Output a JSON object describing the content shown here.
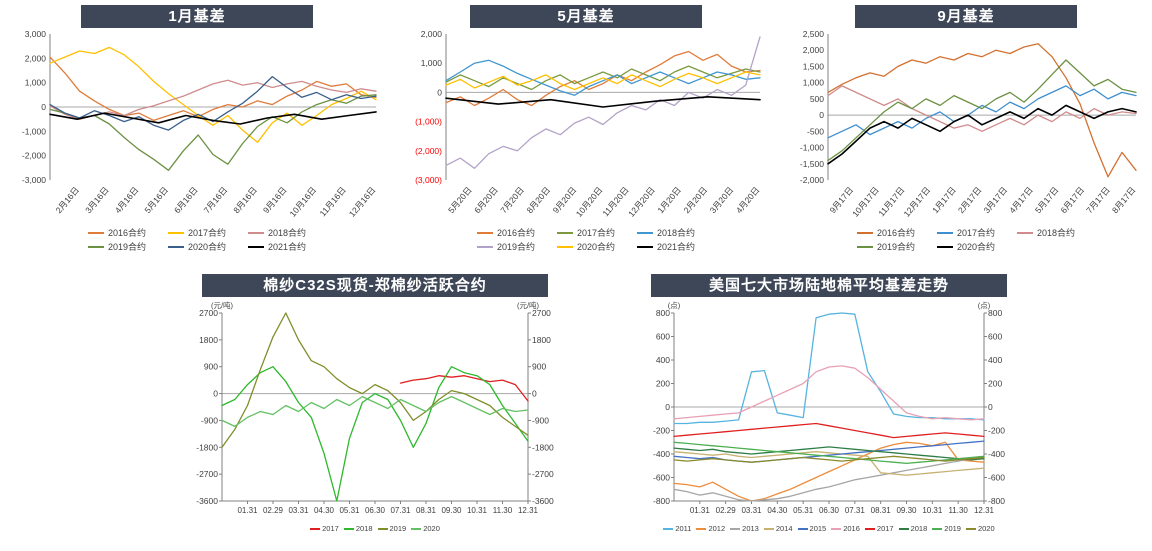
{
  "page": {
    "background": "#ffffff",
    "title_bar_color": "#3E4757"
  },
  "chart_data": [
    {
      "name": "jan-basis",
      "type": "line",
      "title": "1月基差",
      "ylim": [
        -3000,
        3000
      ],
      "ytick_step": 1000,
      "ytick_format": "comma",
      "negative_style": "minus",
      "grid": "zero-line-only",
      "legend_position": "bottom",
      "x_labels": [
        "2月16日",
        "3月16日",
        "4月16日",
        "5月16日",
        "6月16日",
        "7月16日",
        "8月16日",
        "9月16日",
        "10月16日",
        "11月16日",
        "12月16日"
      ],
      "series": [
        {
          "name": "2016合约",
          "color": "#E07B39",
          "values": [
            2050,
            1400,
            650,
            250,
            -100,
            -350,
            -250,
            -550,
            -350,
            -150,
            -400,
            -100,
            100,
            0,
            250,
            100,
            450,
            700,
            1050,
            850,
            950,
            500,
            400
          ]
        },
        {
          "name": "2017合约",
          "color": "#FFC000",
          "values": [
            1800,
            2050,
            2300,
            2200,
            2450,
            2150,
            1650,
            1050,
            550,
            100,
            -350,
            -750,
            -350,
            -950,
            -1450,
            -650,
            -250,
            -750,
            -350,
            100,
            350,
            650,
            300
          ]
        },
        {
          "name": "2018合约",
          "color": "#D08C8C",
          "values": [
            50,
            -300,
            -500,
            -350,
            -200,
            -350,
            -100,
            50,
            250,
            450,
            700,
            950,
            1100,
            900,
            1000,
            800,
            950,
            1050,
            850,
            700,
            600,
            750,
            650
          ]
        },
        {
          "name": "2019合约",
          "color": "#6C9143",
          "values": [
            -100,
            -250,
            -450,
            -350,
            -700,
            -1250,
            -1750,
            -2150,
            -2600,
            -1800,
            -1150,
            -1950,
            -2350,
            -1500,
            -800,
            -400,
            -650,
            -200,
            100,
            300,
            150,
            450,
            500
          ]
        },
        {
          "name": "2020合约",
          "color": "#3A5F8A",
          "values": [
            100,
            -250,
            -450,
            -150,
            -350,
            -600,
            -400,
            -750,
            -950,
            -550,
            -300,
            -600,
            -200,
            150,
            650,
            1250,
            800,
            400,
            600,
            300,
            500,
            350,
            450
          ]
        },
        {
          "name": "2021合约",
          "color": "#000000",
          "width": 1.6,
          "values": [
            -300,
            -500,
            -250,
            -450,
            -650,
            -350,
            -550,
            -700,
            -450,
            -300,
            -500,
            -350,
            -200
          ]
        }
      ]
    },
    {
      "name": "may-basis",
      "type": "line",
      "title": "5月基差",
      "ylim": [
        -3000,
        2000
      ],
      "ytick_step": 1000,
      "ytick_format": "comma",
      "negative_style": "paren_red",
      "grid": "zero-line-only",
      "legend_position": "bottom",
      "x_labels": [
        "5月20日",
        "6月20日",
        "7月20日",
        "8月20日",
        "9月20日",
        "10月20日",
        "11月20日",
        "12月20日",
        "1月20日",
        "2月20日",
        "3月20日",
        "4月20日"
      ],
      "series": [
        {
          "name": "2016合约",
          "color": "#E07B39",
          "values": [
            -350,
            -150,
            -450,
            -200,
            100,
            -250,
            -450,
            -100,
            200,
            400,
            100,
            300,
            600,
            400,
            700,
            950,
            1250,
            1400,
            1100,
            1300,
            900,
            700,
            750
          ]
        },
        {
          "name": "2017合约",
          "color": "#7A9A3D",
          "values": [
            350,
            600,
            400,
            200,
            500,
            300,
            100,
            400,
            600,
            300,
            500,
            700,
            500,
            800,
            600,
            400,
            700,
            900,
            700,
            500,
            650,
            800,
            700
          ]
        },
        {
          "name": "2018合约",
          "color": "#3F97D0",
          "values": [
            400,
            700,
            1000,
            1100,
            900,
            650,
            450,
            250,
            50,
            -100,
            200,
            400,
            600,
            300,
            500,
            700,
            500,
            300,
            500,
            700,
            600,
            450,
            500
          ]
        },
        {
          "name": "2019合约",
          "color": "#B3A2C7",
          "values": [
            -2500,
            -2250,
            -2600,
            -2100,
            -1850,
            -2000,
            -1550,
            -1250,
            -1450,
            -1050,
            -850,
            -1100,
            -700,
            -450,
            -600,
            -250,
            -450,
            0,
            -200,
            100,
            -100,
            250,
            1900
          ]
        },
        {
          "name": "2020合约",
          "color": "#FFC000",
          "values": [
            250,
            450,
            150,
            350,
            550,
            250,
            400,
            600,
            300,
            100,
            300,
            500,
            300,
            600,
            400,
            200,
            450,
            650,
            500,
            300,
            500,
            700,
            600
          ]
        },
        {
          "name": "2021合约",
          "color": "#000000",
          "width": 1.6,
          "values": [
            -200,
            -400,
            -250,
            -500,
            -300,
            -150,
            -250
          ]
        }
      ]
    },
    {
      "name": "sep-basis",
      "type": "line",
      "title": "9月基差",
      "ylim": [
        -2000,
        2500
      ],
      "ytick_step": 500,
      "ytick_format": "comma",
      "negative_style": "minus",
      "grid": "zero-line-only",
      "legend_position": "bottom",
      "x_labels": [
        "9月17日",
        "10月17日",
        "11月17日",
        "12月17日",
        "1月17日",
        "2月17日",
        "3月17日",
        "4月17日",
        "5月17日",
        "6月17日",
        "7月17日",
        "8月17日"
      ],
      "series": [
        {
          "name": "2016合约",
          "color": "#D2702F",
          "values": [
            700,
            950,
            1150,
            1300,
            1200,
            1500,
            1700,
            1600,
            1800,
            1700,
            1900,
            1800,
            2000,
            1900,
            2100,
            2200,
            1800,
            1150,
            350,
            -850,
            -1900,
            -1150,
            -1700
          ]
        },
        {
          "name": "2017合约",
          "color": "#3E8FD0",
          "values": [
            -700,
            -500,
            -300,
            -600,
            -400,
            -200,
            -400,
            -100,
            100,
            -200,
            0,
            300,
            100,
            400,
            200,
            500,
            700,
            900,
            600,
            800,
            500,
            700,
            600
          ]
        },
        {
          "name": "2018合约",
          "color": "#D08C8C",
          "values": [
            600,
            900,
            700,
            500,
            300,
            500,
            200,
            0,
            -200,
            -400,
            -300,
            -500,
            -300,
            -100,
            -300,
            0,
            -200,
            100,
            -100,
            200,
            0,
            100,
            50
          ]
        },
        {
          "name": "2019合约",
          "color": "#6C9143",
          "values": [
            -1400,
            -1100,
            -700,
            -300,
            100,
            400,
            200,
            500,
            300,
            600,
            400,
            200,
            500,
            700,
            400,
            800,
            1250,
            1700,
            1300,
            900,
            1100,
            800,
            700
          ]
        },
        {
          "name": "2020合约",
          "color": "#000000",
          "width": 1.6,
          "values": [
            -1500,
            -1200,
            -800,
            -400,
            -200,
            -400,
            -100,
            -300,
            -500,
            -200,
            0,
            -300,
            -100,
            100,
            -100,
            200,
            0,
            300,
            100,
            -100,
            100,
            200,
            100
          ]
        }
      ]
    },
    {
      "name": "yarn-basis",
      "type": "line",
      "title": "棉纱C32S现货-郑棉纱活跃合约",
      "unit": "(元/吨)",
      "ylim": [
        -3600,
        2700
      ],
      "ytick_step": 900,
      "ytick_format": "plain",
      "negative_style": "minus",
      "grid": "zero-line-only",
      "legend_position": "bottom",
      "x_labels": [
        "01.31",
        "02.29",
        "03.31",
        "04.30",
        "05.31",
        "06.30",
        "07.31",
        "08.31",
        "09.30",
        "10.31",
        "11.30",
        "12.31"
      ],
      "series": [
        {
          "name": "2017",
          "color": "#E02020",
          "values": [
            null,
            null,
            null,
            null,
            null,
            null,
            null,
            null,
            null,
            null,
            null,
            null,
            null,
            null,
            350,
            450,
            500,
            600,
            550,
            600,
            500,
            400,
            450,
            300,
            -250
          ]
        },
        {
          "name": "2018",
          "color": "#2DB82D",
          "values": [
            -400,
            -200,
            300,
            700,
            900,
            400,
            -300,
            -800,
            -2000,
            -3600,
            -1500,
            -300,
            0,
            -200,
            -900,
            -1800,
            -1000,
            200,
            900,
            700,
            600,
            300,
            -400,
            -1000,
            -1600
          ]
        },
        {
          "name": "2019",
          "color": "#7E8E2A",
          "values": [
            -1800,
            -1200,
            -400,
            800,
            1900,
            2700,
            1800,
            1100,
            900,
            500,
            200,
            0,
            300,
            100,
            -300,
            -900,
            -600,
            -200,
            100,
            0,
            -200,
            -400,
            -800,
            -1100,
            -1400
          ]
        },
        {
          "name": "2020",
          "color": "#63C063",
          "values": [
            -900,
            -1100,
            -800,
            -600,
            -700,
            -400,
            -600,
            -300,
            -500,
            -200,
            -400,
            -100,
            -300,
            -500,
            -200,
            -400,
            -600,
            -300,
            -100,
            -300,
            -500,
            -700,
            -500,
            -600,
            -550
          ]
        }
      ]
    },
    {
      "name": "us-basis",
      "type": "line",
      "title": "美国七大市场陆地棉平均基差走势",
      "unit": "(点)",
      "ylim": [
        -800,
        800
      ],
      "ytick_step": 200,
      "ytick_format": "plain",
      "negative_style": "minus",
      "grid": "zero-line-only",
      "legend_position": "bottom",
      "x_labels": [
        "01.31",
        "02.29",
        "03.31",
        "04.30",
        "05.31",
        "06.30",
        "07.31",
        "08.31",
        "09.30",
        "10.31",
        "11.30",
        "12.31"
      ],
      "series": [
        {
          "name": "2011",
          "color": "#56B4E0",
          "values": [
            -140,
            -140,
            -130,
            -130,
            -120,
            -110,
            300,
            310,
            -50,
            -70,
            -90,
            760,
            790,
            800,
            790,
            300,
            130,
            -60,
            -80,
            -90,
            -90,
            -100,
            -100,
            -100,
            -110
          ]
        },
        {
          "name": "2012",
          "color": "#ED8C3B",
          "values": [
            -650,
            -660,
            -680,
            -640,
            -700,
            -760,
            -800,
            -780,
            -740,
            -700,
            -650,
            -600,
            -550,
            -500,
            -450,
            -400,
            -350,
            -320,
            -300,
            -310,
            -330,
            -300,
            -450,
            -460,
            -470
          ]
        },
        {
          "name": "2013",
          "color": "#A6A6A6",
          "values": [
            -700,
            -720,
            -750,
            -730,
            -760,
            -790,
            -800,
            -790,
            -780,
            -760,
            -730,
            -700,
            -680,
            -650,
            -620,
            -600,
            -580,
            -560,
            -540,
            -520,
            -500,
            -480,
            -460,
            -440,
            -430
          ]
        },
        {
          "name": "2014",
          "color": "#C8B273",
          "values": [
            -380,
            -390,
            -400,
            -410,
            -400,
            -420,
            -430,
            -420,
            -410,
            -400,
            -390,
            -380,
            -390,
            -400,
            -410,
            -420,
            -560,
            -570,
            -580,
            -570,
            -560,
            -550,
            -540,
            -530,
            -520
          ]
        },
        {
          "name": "2015",
          "color": "#4472C4",
          "values": [
            -420,
            -430,
            -440,
            -430,
            -450,
            -460,
            -470,
            -460,
            -450,
            -440,
            -430,
            -420,
            -410,
            -400,
            -390,
            -380,
            -370,
            -360,
            -350,
            -340,
            -330,
            -320,
            -310,
            -300,
            -290
          ]
        },
        {
          "name": "2016",
          "color": "#E8A0B4",
          "values": [
            -100,
            -90,
            -80,
            -70,
            -60,
            -50,
            0,
            50,
            100,
            150,
            200,
            300,
            340,
            350,
            330,
            250,
            150,
            50,
            -50,
            -80,
            -100,
            -90,
            -100,
            -110,
            -100
          ]
        },
        {
          "name": "2017",
          "color": "#E02020",
          "values": [
            -250,
            -240,
            -230,
            -220,
            -210,
            -200,
            -190,
            -180,
            -170,
            -160,
            -150,
            -140,
            -160,
            -180,
            -200,
            -220,
            -240,
            -260,
            -250,
            -240,
            -230,
            -220,
            -230,
            -240,
            -250
          ]
        },
        {
          "name": "2018",
          "color": "#2E7D46",
          "values": [
            -350,
            -360,
            -370,
            -360,
            -380,
            -390,
            -400,
            -390,
            -380,
            -370,
            -360,
            -350,
            -340,
            -350,
            -360,
            -370,
            -380,
            -390,
            -400,
            -410,
            -420,
            -430,
            -440,
            -450,
            -440
          ]
        },
        {
          "name": "2019",
          "color": "#4CAF50",
          "values": [
            -300,
            -310,
            -320,
            -330,
            -340,
            -350,
            -360,
            -370,
            -380,
            -390,
            -400,
            -410,
            -420,
            -430,
            -440,
            -450,
            -460,
            -470,
            -480,
            -470,
            -460,
            -450,
            -440,
            -430,
            -420
          ]
        },
        {
          "name": "2020",
          "color": "#8A8A2E",
          "values": [
            -450,
            -460,
            -450,
            -440,
            -450,
            -460,
            -470,
            -460,
            -450,
            -440,
            -430,
            -440,
            -450,
            -460,
            -450,
            -440,
            -430,
            -420,
            -430,
            -440,
            -450,
            -460,
            -450,
            -440,
            -430
          ]
        }
      ]
    }
  ]
}
